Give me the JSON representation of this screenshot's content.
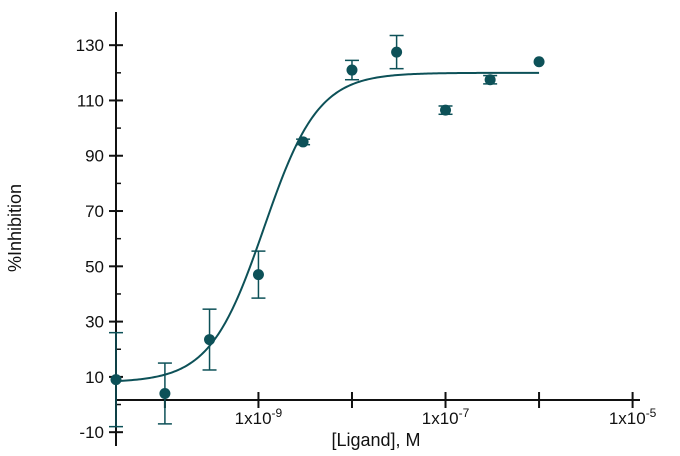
{
  "chart_data": {
    "type": "scatter",
    "title": "",
    "xlabel": "[Ligand], M",
    "ylabel": "%Inhibition",
    "x_scale": "log",
    "xlim": [
      3e-11,
      1.2e-05
    ],
    "ylim": [
      -15,
      142
    ],
    "grid": false,
    "color": "#0d5158",
    "y_ticks": [
      -10,
      10,
      30,
      50,
      70,
      90,
      110,
      130
    ],
    "x_ticks": [
      {
        "value": 1e-09,
        "base": "1x10",
        "exp": "-9"
      },
      {
        "value": 1e-07,
        "base": "1x10",
        "exp": "-7"
      },
      {
        "value": 1e-05,
        "base": "1x10",
        "exp": "-5"
      }
    ],
    "points": [
      {
        "x": 3e-11,
        "y": 9,
        "err": 17
      },
      {
        "x": 1e-10,
        "y": 4,
        "err": 11
      },
      {
        "x": 3e-10,
        "y": 23.5,
        "err": 11
      },
      {
        "x": 1e-09,
        "y": 47,
        "err": 8.5
      },
      {
        "x": 3e-09,
        "y": 95,
        "err": 1
      },
      {
        "x": 1e-08,
        "y": 121,
        "err": 3.5
      },
      {
        "x": 3e-08,
        "y": 127.5,
        "err": 6
      },
      {
        "x": 1e-07,
        "y": 106.5,
        "err": 1.5
      },
      {
        "x": 3e-07,
        "y": 117.5,
        "err": 1.5
      },
      {
        "x": 1e-06,
        "y": 124,
        "err": 0
      }
    ],
    "fit_curve": {
      "model": "four-parameter logistic",
      "bottom": 8,
      "top": 120,
      "log_ec50": -8.94,
      "hill": 1.5
    }
  }
}
